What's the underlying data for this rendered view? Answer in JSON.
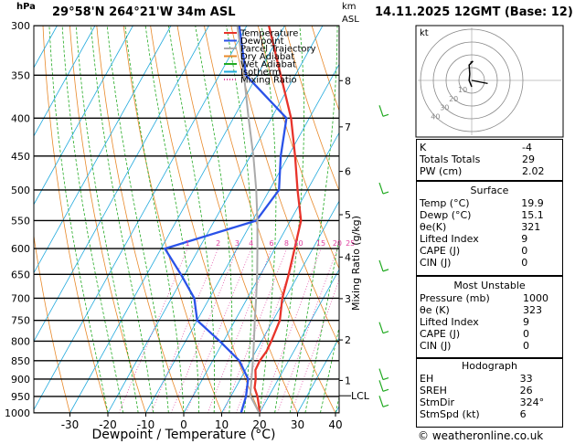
{
  "header": {
    "units_left": "hPa",
    "location": "29°58'N  264°21'W  34m  ASL",
    "units_right_1": "km",
    "units_right_2": "ASL",
    "datetime": "14.11.2025  12GMT  (Base: 12)"
  },
  "chart_data": {
    "type": "line",
    "title": "29°58'N  264°21'W  34m  ASL",
    "xlabel": "Dewpoint / Temperature (°C)",
    "ylabel": "hPa",
    "y_scale": "log",
    "x_ticks": [
      -30,
      -20,
      -10,
      0,
      10,
      20,
      30,
      40
    ],
    "pressure_levels": [
      300,
      350,
      400,
      450,
      500,
      550,
      600,
      650,
      700,
      750,
      800,
      850,
      900,
      950,
      1000
    ],
    "km_ticks": [
      {
        "km": "1",
        "p": 904
      },
      {
        "km": "2",
        "p": 797
      },
      {
        "km": "3",
        "p": 701
      },
      {
        "km": "4",
        "p": 616
      },
      {
        "km": "5",
        "p": 540
      },
      {
        "km": "6",
        "p": 472
      },
      {
        "km": "7",
        "p": 411
      },
      {
        "km": "8",
        "p": 356
      }
    ],
    "lcl": {
      "label": "LCL",
      "p": 948
    },
    "mixing_ratio_labels": [
      "1",
      "2",
      "3",
      "4",
      "6",
      "8",
      "10",
      "15",
      "20",
      "25"
    ],
    "mixing_ratio_axis_label": "Mixing Ratio (g/kg)",
    "legend": {
      "placement": "top-left",
      "entries": [
        {
          "name": "Temperature",
          "color": "#e8332a"
        },
        {
          "name": "Dewpoint",
          "color": "#2a52e8"
        },
        {
          "name": "Parcel Trajectory",
          "color": "#aaaaaa"
        },
        {
          "name": "Dry Adiabat",
          "color": "#e8892a"
        },
        {
          "name": "Wet Adiabat",
          "color": "#22aa22"
        },
        {
          "name": "Isotherm",
          "color": "#22aadd"
        },
        {
          "name": "Mixing Ratio",
          "color": "#e040a0"
        }
      ]
    },
    "series": [
      {
        "name": "Temperature",
        "color": "#e8332a",
        "points": [
          [
            1000,
            20.0
          ],
          [
            975,
            18.6
          ],
          [
            950,
            17.0
          ],
          [
            925,
            15.0
          ],
          [
            900,
            14.0
          ],
          [
            875,
            12.6
          ],
          [
            850,
            12.4
          ],
          [
            825,
            12.8
          ],
          [
            800,
            12.6
          ],
          [
            775,
            12.2
          ],
          [
            750,
            11.8
          ],
          [
            700,
            9.2
          ],
          [
            650,
            7.4
          ],
          [
            600,
            5.2
          ],
          [
            550,
            2.8
          ],
          [
            500,
            -2.6
          ],
          [
            450,
            -8.2
          ],
          [
            400,
            -14.8
          ],
          [
            350,
            -23.8
          ],
          [
            300,
            -34.2
          ]
        ]
      },
      {
        "name": "Dewpoint",
        "color": "#2a52e8",
        "points": [
          [
            1000,
            15.1
          ],
          [
            950,
            14.0
          ],
          [
            900,
            12.0
          ],
          [
            850,
            7.0
          ],
          [
            800,
            -1.0
          ],
          [
            750,
            -10.0
          ],
          [
            700,
            -14.0
          ],
          [
            650,
            -21.0
          ],
          [
            600,
            -29.0
          ],
          [
            550,
            -9.0
          ],
          [
            500,
            -7.5
          ],
          [
            450,
            -12.0
          ],
          [
            400,
            -16.0
          ],
          [
            350,
            -33.0
          ],
          [
            300,
            -42.0
          ]
        ]
      },
      {
        "name": "Parcel Trajectory",
        "color": "#aaaaaa",
        "points": [
          [
            1000,
            19.9
          ],
          [
            948,
            15.0
          ],
          [
            900,
            12.9
          ],
          [
            850,
            10.6
          ],
          [
            800,
            8.0
          ],
          [
            750,
            5.2
          ],
          [
            700,
            2.3
          ],
          [
            650,
            -0.9
          ],
          [
            600,
            -4.6
          ],
          [
            550,
            -8.7
          ],
          [
            500,
            -13.5
          ],
          [
            450,
            -19.2
          ],
          [
            400,
            -26.0
          ],
          [
            350,
            -33.5
          ],
          [
            300,
            -42.5
          ]
        ]
      }
    ]
  },
  "hodograph": {
    "unit_label": "kt",
    "ring_labels": [
      "10",
      "20",
      "30",
      "40"
    ],
    "points_kt": [
      [
        0,
        -5
      ],
      [
        -2,
        0
      ],
      [
        -1.5,
        5
      ],
      [
        -2,
        12
      ],
      [
        1,
        15
      ],
      [
        -1,
        14
      ]
    ],
    "storm_motion": [
      5,
      -4
    ]
  },
  "indices": {
    "k_label": "K",
    "k_value": "-4",
    "tt_label": "Totals Totals",
    "tt_value": "29",
    "pw_label": "PW (cm)",
    "pw_value": "2.02"
  },
  "surface": {
    "title": "Surface",
    "rows": [
      {
        "label": "Temp (°C)",
        "value": "19.9"
      },
      {
        "label": "Dewp (°C)",
        "value": "15.1"
      },
      {
        "label": "θe(K)",
        "value": "321"
      },
      {
        "label": "Lifted Index",
        "value": "9"
      },
      {
        "label": "CAPE (J)",
        "value": "0"
      },
      {
        "label": "CIN (J)",
        "value": "0"
      }
    ]
  },
  "most_unstable": {
    "title": "Most Unstable",
    "rows": [
      {
        "label": "Pressure (mb)",
        "value": "1000"
      },
      {
        "label": "θe (K)",
        "value": "323"
      },
      {
        "label": "Lifted Index",
        "value": "9"
      },
      {
        "label": "CAPE (J)",
        "value": "0"
      },
      {
        "label": "CIN (J)",
        "value": "0"
      }
    ]
  },
  "hodo_table": {
    "title": "Hodograph",
    "rows": [
      {
        "label": "EH",
        "value": "33"
      },
      {
        "label": "SREH",
        "value": "26"
      },
      {
        "label": "StmDir",
        "value": "324°"
      },
      {
        "label": "StmSpd (kt)",
        "value": "6"
      }
    ]
  },
  "footer": "© weatheronline.co.uk"
}
